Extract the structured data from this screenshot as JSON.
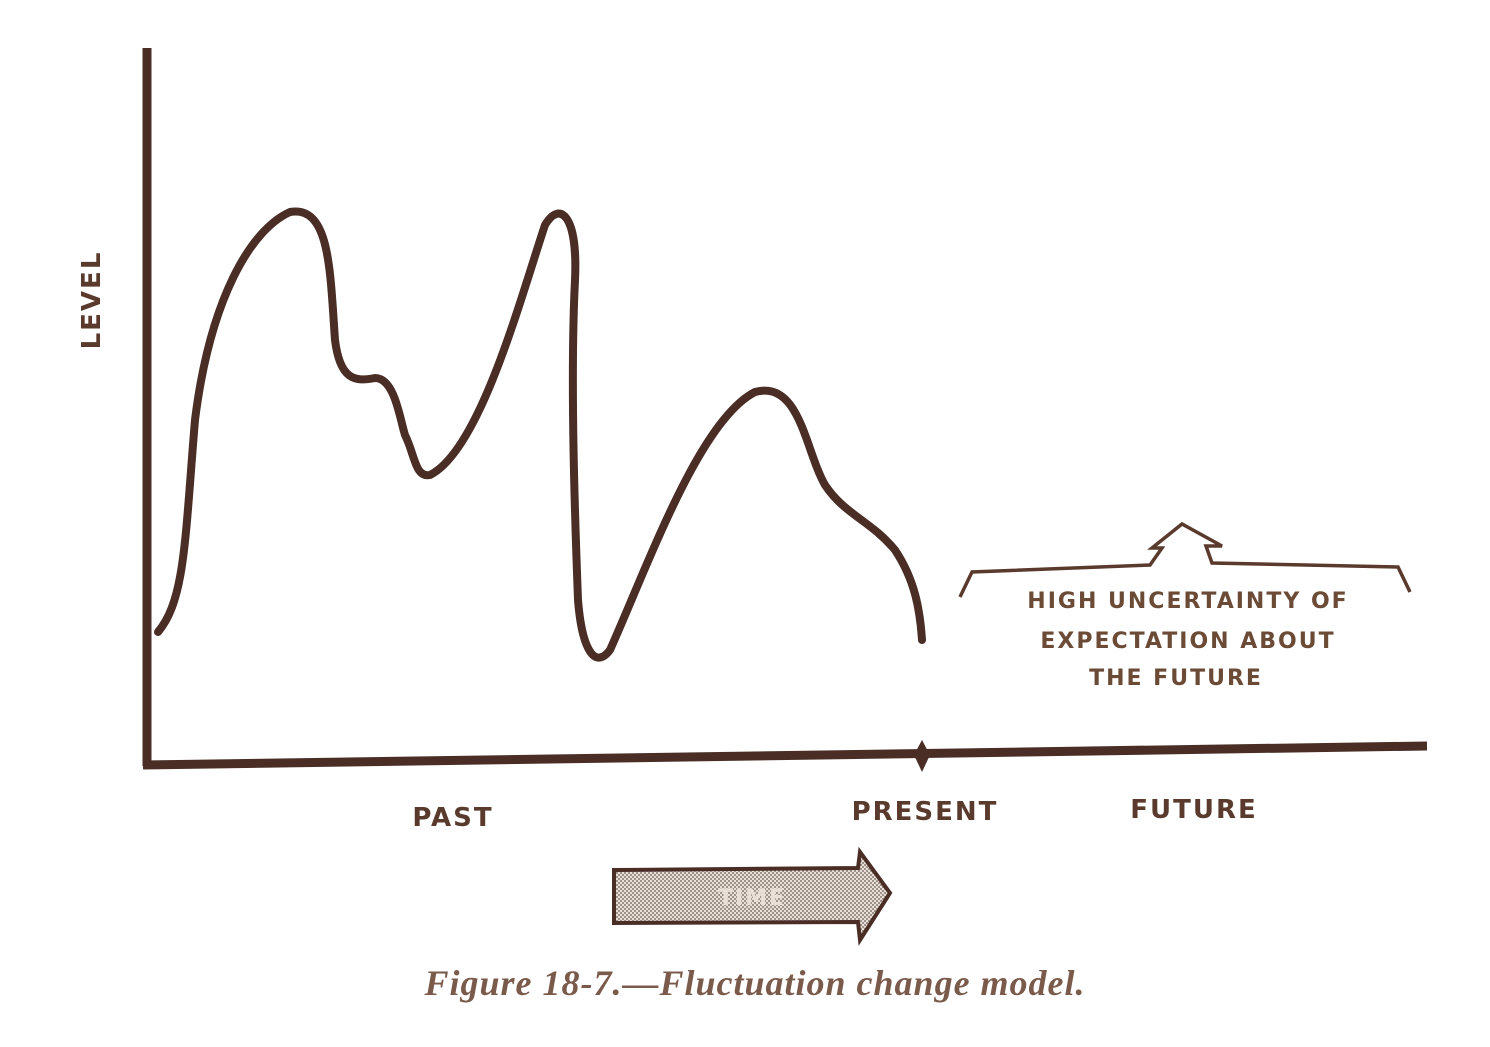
{
  "axes": {
    "y_label": "LEVEL",
    "x_labels": [
      "PAST",
      "PRESENT",
      "FUTURE"
    ]
  },
  "annotation": {
    "lines": [
      "HIGH UNCERTAINTY OF",
      "EXPECTATION ABOUT",
      "THE FUTURE"
    ]
  },
  "time_arrow": {
    "label": "TIME"
  },
  "caption": "Figure 18-7.—Fluctuation change model."
}
